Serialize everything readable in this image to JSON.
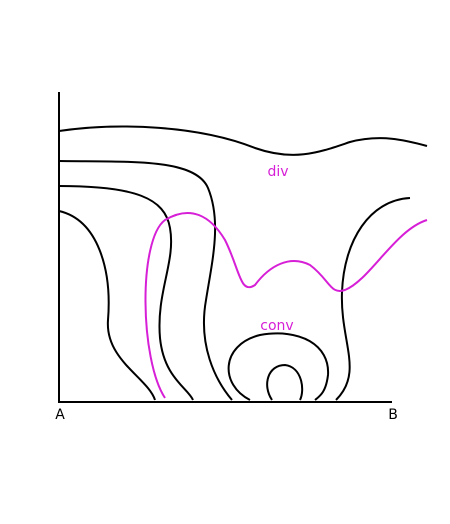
{
  "labels": {
    "top": "div",
    "bottom": "conv"
  },
  "axis": {
    "start": "A",
    "end": "B"
  }
}
